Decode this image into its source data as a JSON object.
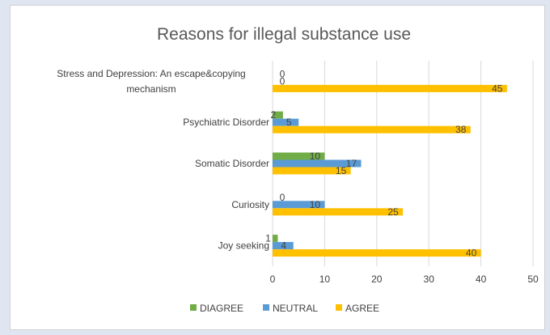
{
  "chart_data": {
    "type": "bar",
    "orientation": "horizontal",
    "title": "Reasons for illegal substance use",
    "categories": [
      "Joy seeking",
      "Curiosity",
      "Somatic Disorder",
      "Psychiatric Disorder",
      "Stress and Depression: An escape&copying mechanism"
    ],
    "category_lines": [
      [
        "Joy seeking"
      ],
      [
        "Curiosity"
      ],
      [
        "Somatic Disorder"
      ],
      [
        "Psychiatric Disorder"
      ],
      [
        "Stress and Depression: An escape&copying",
        "mechanism"
      ]
    ],
    "series": [
      {
        "name": "DIAGREE",
        "color": "#70ad47",
        "values": [
          1,
          0,
          10,
          2,
          0
        ]
      },
      {
        "name": "NEUTRAL",
        "color": "#5b9bd5",
        "values": [
          4,
          10,
          17,
          5,
          0
        ]
      },
      {
        "name": "AGREE",
        "color": "#ffc000",
        "values": [
          40,
          25,
          15,
          38,
          45
        ]
      }
    ],
    "xlim": [
      0,
      50
    ],
    "xticks": [
      0,
      10,
      20,
      30,
      40,
      50
    ],
    "grid": true,
    "legend": "bottom"
  }
}
